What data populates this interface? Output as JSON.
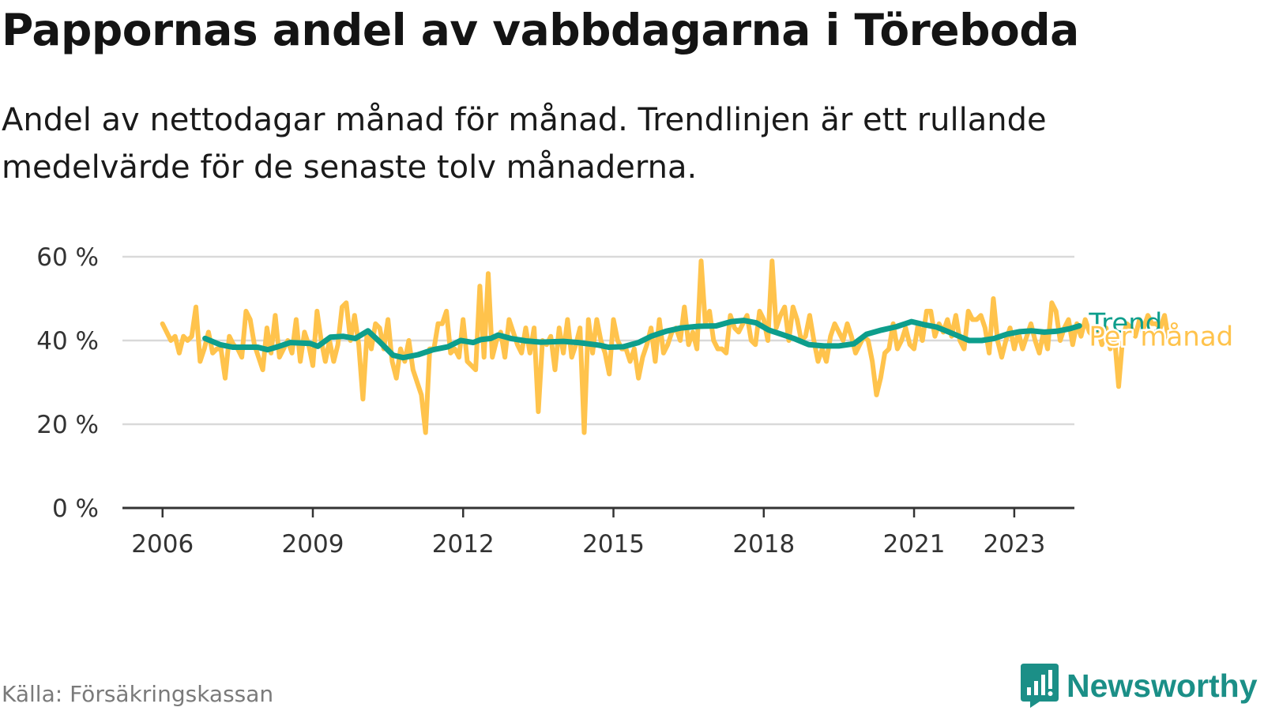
{
  "title": "Pappornas andel av vabbdagarna i Töreboda",
  "subtitle": "Andel av nettodagar månad för månad. Trendlinjen är ett rullande medelvärde för de senaste tolv månaderna.",
  "source": "Källa: Försäkringskassan",
  "brand": {
    "name": "Newsworthy",
    "logo_icon": "newsworthy-chart-bubble-icon"
  },
  "colors": {
    "monthly": "#ffc34c",
    "trend": "#0d9e8c",
    "grid": "#d9d9d9",
    "axis": "#333333",
    "brand": "#1b8f87"
  },
  "chart_data": {
    "type": "line",
    "title": "Pappornas andel av vabbdagarna i Töreboda",
    "x_unit": "year",
    "xlim": [
      2005.2,
      2024.2
    ],
    "ylim": [
      0,
      60
    ],
    "y_ticks": [
      0,
      20,
      40,
      60
    ],
    "y_tick_labels": [
      "0 %",
      "20 %",
      "40 %",
      "60 %"
    ],
    "x_ticks": [
      2006,
      2009,
      2012,
      2015,
      2018,
      2021,
      2023
    ],
    "x_tick_labels": [
      "2006",
      "2009",
      "2012",
      "2015",
      "2018",
      "2021",
      "2023"
    ],
    "grid": true,
    "legend": "end-of-line labels",
    "series": [
      {
        "name": "Per månad",
        "color": "#ffc34c",
        "x_start": 2006.0,
        "x_step": 0.08333,
        "values": [
          44,
          42,
          40,
          41,
          37,
          41,
          40,
          41,
          48,
          35,
          38,
          42,
          37,
          38,
          38,
          31,
          41,
          39,
          38,
          36,
          47,
          45,
          39,
          36,
          33,
          43,
          37,
          46,
          36,
          38,
          40,
          37,
          45,
          35,
          42,
          39,
          34,
          47,
          40,
          35,
          40,
          35,
          39,
          48,
          49,
          40,
          46,
          39,
          26,
          42,
          38,
          44,
          43,
          38,
          45,
          35,
          31,
          38,
          35,
          40,
          33,
          30,
          27,
          18,
          38,
          38,
          44,
          44,
          47,
          37,
          38,
          36,
          45,
          35,
          34,
          33,
          53,
          36,
          56,
          36,
          40,
          42,
          36,
          45,
          42,
          39,
          37,
          43,
          37,
          43,
          23,
          40,
          39,
          41,
          33,
          43,
          37,
          45,
          36,
          39,
          43,
          18,
          45,
          37,
          45,
          40,
          37,
          32,
          45,
          40,
          38,
          38,
          35,
          38,
          31,
          36,
          39,
          43,
          35,
          45,
          37,
          39,
          42,
          43,
          40,
          48,
          39,
          42,
          38,
          59,
          44,
          47,
          40,
          38,
          38,
          37,
          46,
          43,
          42,
          44,
          46,
          40,
          39,
          47,
          45,
          40,
          59,
          43,
          46,
          48,
          40,
          48,
          45,
          40,
          41,
          46,
          40,
          35,
          38,
          35,
          41,
          44,
          42,
          40,
          44,
          41,
          37,
          39,
          41,
          40,
          35,
          27,
          31,
          37,
          38,
          44,
          38,
          40,
          43,
          39,
          38,
          44,
          40,
          47,
          47,
          41,
          44,
          42,
          45,
          41,
          46,
          40,
          38,
          47,
          45,
          45,
          46,
          43,
          37,
          50,
          40,
          36,
          40,
          43,
          38,
          42,
          38,
          41,
          44,
          40,
          37,
          42,
          38,
          49,
          47,
          40,
          43,
          45,
          39,
          44,
          41,
          45,
          42,
          41,
          43,
          39,
          43,
          38,
          41,
          29,
          41,
          44,
          43,
          41,
          45,
          43,
          46,
          44,
          44,
          43,
          46,
          40,
          41
        ]
      },
      {
        "name": "Trend",
        "color": "#0d9e8c",
        "points": [
          [
            2006.85,
            40.5
          ],
          [
            2007.15,
            39
          ],
          [
            2007.4,
            38.4
          ],
          [
            2007.9,
            38.4
          ],
          [
            2008.1,
            37.8
          ],
          [
            2008.3,
            38.5
          ],
          [
            2008.55,
            39.5
          ],
          [
            2008.95,
            39.3
          ],
          [
            2009.1,
            38.6
          ],
          [
            2009.35,
            40.8
          ],
          [
            2009.6,
            41
          ],
          [
            2009.85,
            40.5
          ],
          [
            2010.1,
            42.3
          ],
          [
            2010.35,
            39.5
          ],
          [
            2010.6,
            36.5
          ],
          [
            2010.8,
            35.9
          ],
          [
            2011.1,
            36.6
          ],
          [
            2011.4,
            37.8
          ],
          [
            2011.7,
            38.5
          ],
          [
            2011.95,
            40
          ],
          [
            2012.2,
            39.5
          ],
          [
            2012.35,
            40.2
          ],
          [
            2012.55,
            40.5
          ],
          [
            2012.7,
            41.3
          ],
          [
            2012.95,
            40.5
          ],
          [
            2013.25,
            39.9
          ],
          [
            2013.55,
            39.6
          ],
          [
            2014.0,
            39.8
          ],
          [
            2014.3,
            39.5
          ],
          [
            2014.7,
            38.9
          ],
          [
            2014.9,
            38.4
          ],
          [
            2015.2,
            38.5
          ],
          [
            2015.5,
            39.5
          ],
          [
            2015.75,
            41
          ],
          [
            2016.05,
            42.2
          ],
          [
            2016.35,
            43
          ],
          [
            2016.7,
            43.4
          ],
          [
            2017.05,
            43.5
          ],
          [
            2017.35,
            44.5
          ],
          [
            2017.6,
            44.8
          ],
          [
            2017.85,
            44.2
          ],
          [
            2018.1,
            42.5
          ],
          [
            2018.35,
            41.5
          ],
          [
            2018.6,
            40.5
          ],
          [
            2018.9,
            39
          ],
          [
            2019.2,
            38.7
          ],
          [
            2019.5,
            38.7
          ],
          [
            2019.8,
            39.2
          ],
          [
            2020.05,
            41.5
          ],
          [
            2020.35,
            42.5
          ],
          [
            2020.65,
            43.3
          ],
          [
            2020.95,
            44.5
          ],
          [
            2021.2,
            43.8
          ],
          [
            2021.45,
            43.2
          ],
          [
            2021.7,
            42
          ],
          [
            2021.9,
            41
          ],
          [
            2022.1,
            40
          ],
          [
            2022.35,
            40
          ],
          [
            2022.6,
            40.5
          ],
          [
            2022.85,
            41.5
          ],
          [
            2023.1,
            42.1
          ],
          [
            2023.35,
            42.3
          ],
          [
            2023.6,
            42
          ],
          [
            2023.85,
            42.2
          ],
          [
            2024.1,
            42.8
          ],
          [
            2024.3,
            43.5
          ]
        ]
      }
    ]
  }
}
